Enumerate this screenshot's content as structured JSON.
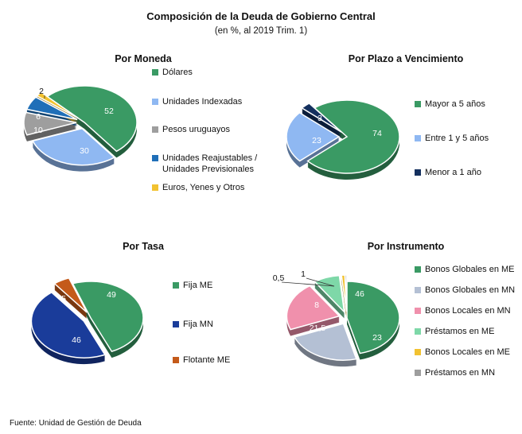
{
  "title": "Composición de la Deuda de Gobierno Central",
  "subtitle": "(en %, al 2019 Trim. 1)",
  "source": "Fuente: Unidad de Gestión de Deuda",
  "chart_data": [
    {
      "type": "pie",
      "title": "Por Moneda",
      "categories": [
        "Dólares",
        "Unidades Indexadas",
        "Pesos uruguayos",
        "Unidades Reajustables / Unidades Previsionales",
        "Euros, Yenes y Otros"
      ],
      "legend_lines": [
        [
          "Dólares"
        ],
        [
          "Unidades Indexadas"
        ],
        [
          "Pesos uruguayos"
        ],
        [
          "Unidades Reajustables /",
          "Unidades Previsionales"
        ],
        [
          "Euros, Yenes y Otros"
        ]
      ],
      "values": [
        52,
        30,
        10,
        6,
        2
      ],
      "labels": [
        "52",
        "30",
        "10",
        "6",
        "2"
      ],
      "colors": [
        "#3a9a64",
        "#8fb8f2",
        "#9e9e9e",
        "#1f6fb8",
        "#f2c230"
      ],
      "exploded": [
        false,
        true,
        true,
        true,
        true
      ]
    },
    {
      "type": "pie",
      "title": "Por Plazo a Vencimiento",
      "categories": [
        "Mayor a 5 años",
        "Entre 1 y 5 años",
        "Menor a 1 año"
      ],
      "legend_lines": [
        [
          "Mayor a 5 años"
        ],
        [
          "Entre 1 y 5 años"
        ],
        [
          "Menor a 1 año"
        ]
      ],
      "values": [
        74,
        23,
        3
      ],
      "labels": [
        "74",
        "23",
        "3"
      ],
      "colors": [
        "#3a9a64",
        "#8fb8f2",
        "#14305e"
      ],
      "exploded": [
        false,
        true,
        true
      ]
    },
    {
      "type": "pie",
      "title": "Por Tasa",
      "categories": [
        "Fija ME",
        "Fija MN",
        "Flotante ME"
      ],
      "legend_lines": [
        [
          "Fija ME"
        ],
        [
          "Fija MN"
        ],
        [
          "Flotante ME"
        ]
      ],
      "values": [
        49,
        46,
        5
      ],
      "labels": [
        "49",
        "46",
        "5"
      ],
      "colors": [
        "#3a9a64",
        "#1a3c9a",
        "#c45a1a"
      ],
      "exploded": [
        false,
        true,
        true
      ]
    },
    {
      "type": "pie",
      "title": "Por Instrumento",
      "categories": [
        "Bonos Globales en ME",
        "Bonos Globales en MN",
        "Bonos Locales en MN",
        "Préstamos en ME",
        "Bonos Locales en ME",
        "Préstamos en MN"
      ],
      "legend_lines": [
        [
          "Bonos Globales en ME"
        ],
        [
          "Bonos Globales en MN"
        ],
        [
          "Bonos Locales en MN"
        ],
        [
          "Préstamos en ME"
        ],
        [
          "Bonos Locales en ME"
        ],
        [
          "Préstamos en MN"
        ]
      ],
      "values": [
        46,
        23,
        21.5,
        8,
        1,
        0.5
      ],
      "labels": [
        "46",
        "23",
        "21,5",
        "8",
        "1",
        "0,5"
      ],
      "colors": [
        "#3a9a64",
        "#b4c0d4",
        "#f090ac",
        "#7ed8a8",
        "#f2c230",
        "#9e9e9e"
      ],
      "exploded": [
        false,
        true,
        true,
        true,
        true,
        true
      ]
    }
  ]
}
